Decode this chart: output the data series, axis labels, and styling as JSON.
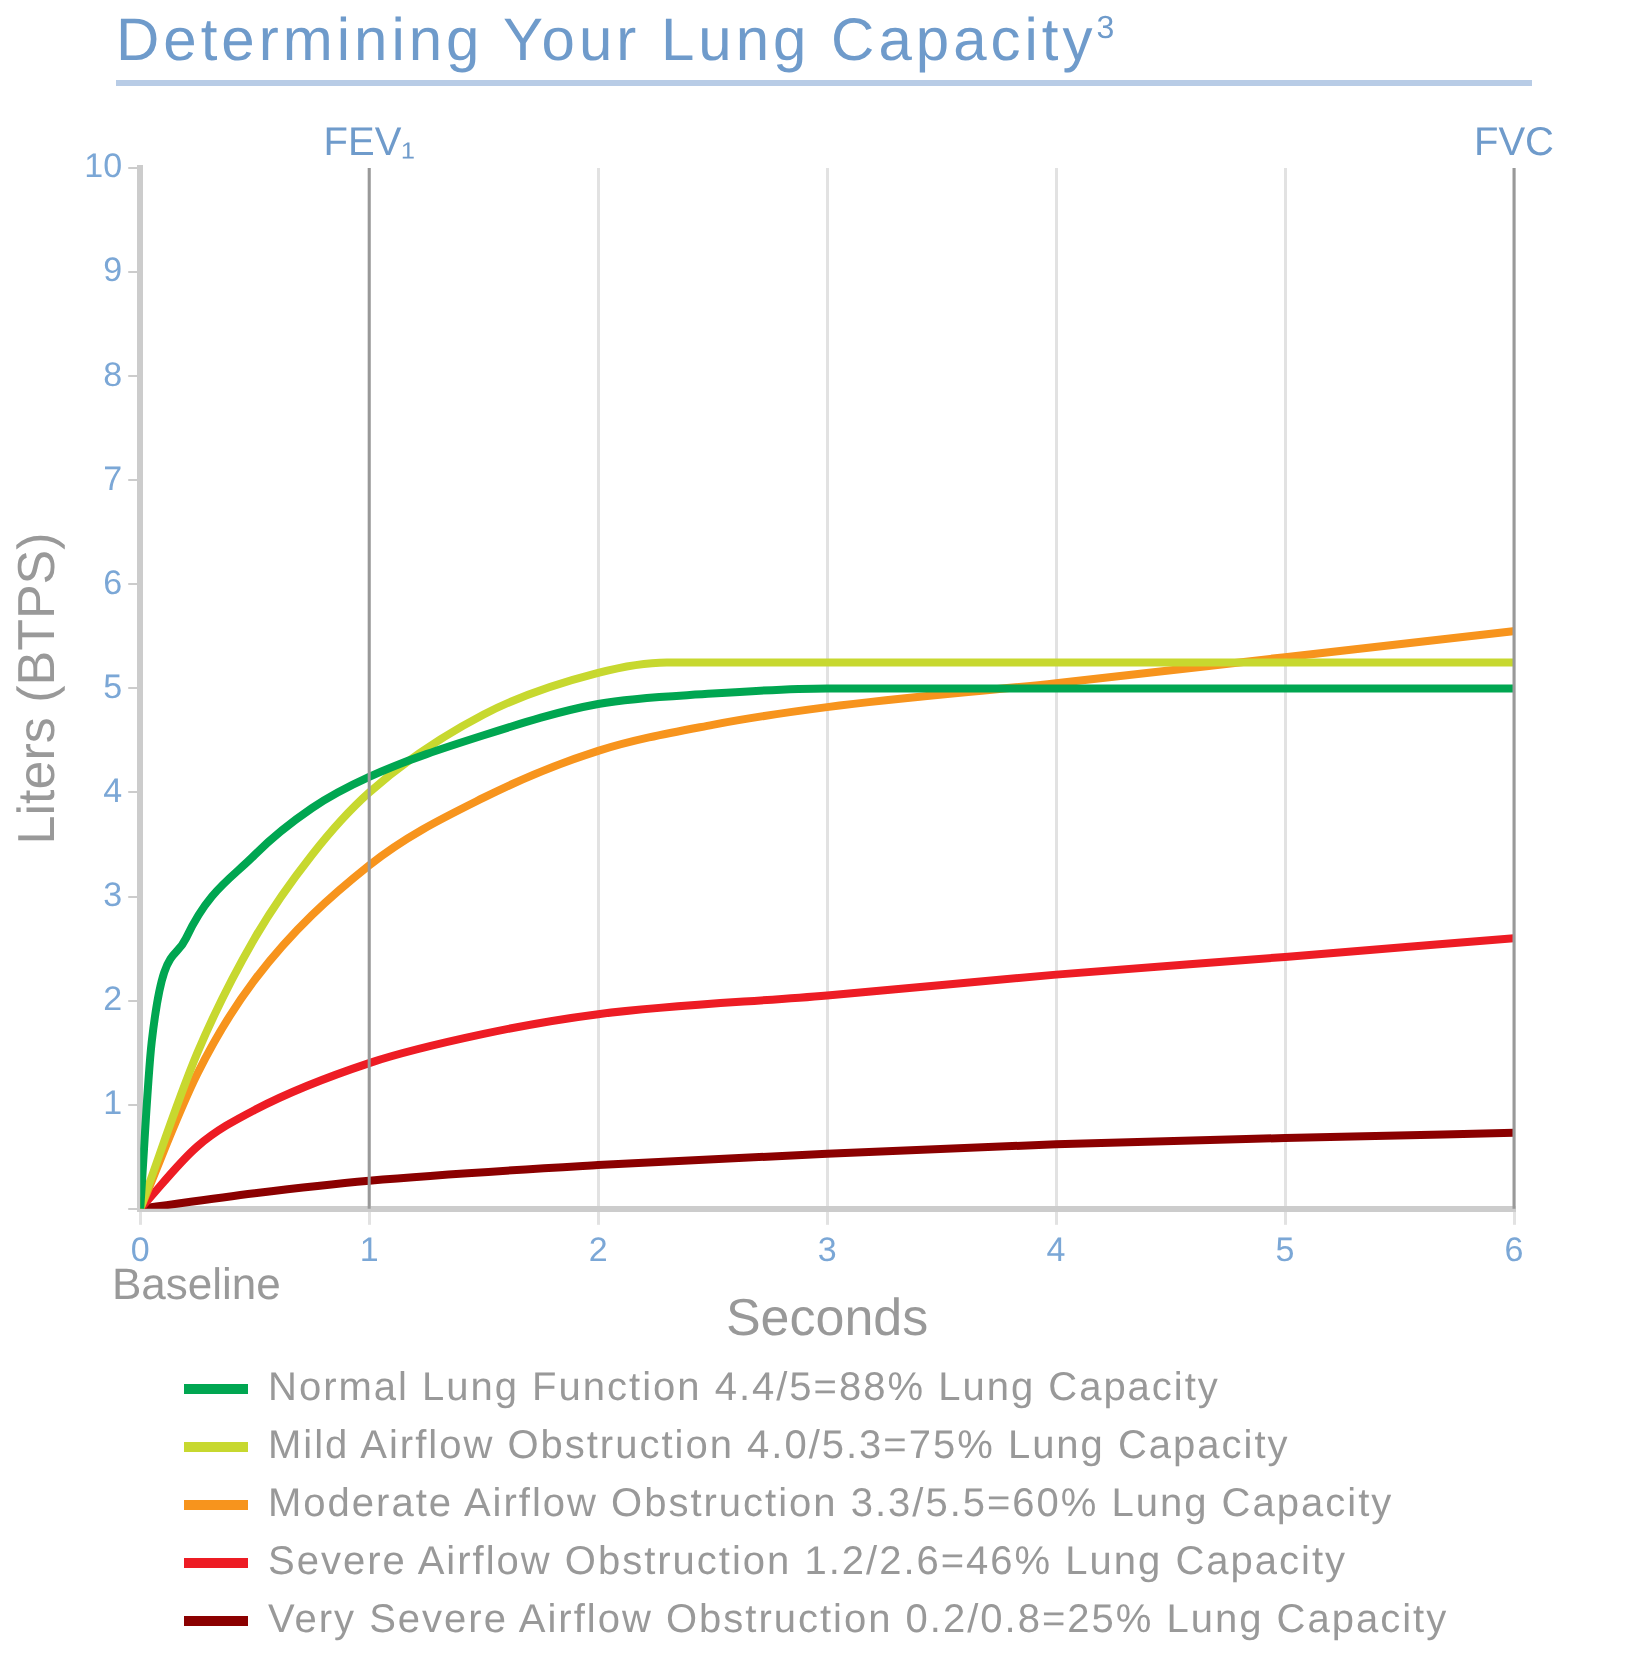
{
  "chart_data": {
    "type": "line",
    "title": "Determining Your Lung Capacity$^{3}$",
    "xlabel": "Seconds",
    "ylabel": "Liters (BTPS)",
    "xlim": [
      0,
      6
    ],
    "xticks": [
      0,
      1,
      2,
      3,
      4,
      5,
      6
    ],
    "ylim": [
      0,
      10
    ],
    "yticks": [
      {
        "value": 0,
        "label": null
      },
      1,
      2,
      3,
      4,
      5,
      6,
      7,
      8,
      9,
      10
    ],
    "grid": "x",
    "legend": "bottom",
    "marker": "none",
    "ref_lines": [
      {
        "axis": "x",
        "value": 1,
        "label": "FEV₁",
        "color": "#999999"
      },
      {
        "axis": "x",
        "value": 6,
        "label": "FVC",
        "color": "#999999"
      }
    ],
    "annotations": [
      "Baseline"
    ],
    "series": [
      {
        "name": "Normal Lung Function 4.4/5=88% Lung Capacity",
        "color": "#00a651",
        "x": [
          0,
          0.05,
          0.2,
          0.5,
          0.75,
          1,
          1.5,
          2,
          2.5,
          3,
          4,
          5,
          6
        ],
        "values": [
          0,
          1.6,
          2.6,
          3.4,
          3.85,
          4.15,
          4.55,
          4.85,
          4.95,
          5,
          5,
          5,
          5
        ]
      },
      {
        "name": "Mild Airflow Obstruction 4.0/5.3=75% Lung Capacity",
        "color": "#c7d82f",
        "x": [
          0,
          0.25,
          0.5,
          0.75,
          1,
          1.5,
          2,
          2.3,
          3,
          4,
          5,
          6
        ],
        "values": [
          0,
          1.5,
          2.6,
          3.4,
          4,
          4.75,
          5.15,
          5.25,
          5.25,
          5.25,
          5.25,
          5.25
        ]
      },
      {
        "name": "Moderate Airflow Obstruction 3.3/5.5=60% Lung Capacity",
        "color": "#f7941d",
        "x": [
          0,
          0.25,
          0.5,
          1,
          1.5,
          2,
          2.5,
          3,
          4,
          5,
          6
        ],
        "values": [
          0,
          1.3,
          2.2,
          3.3,
          3.95,
          4.4,
          4.65,
          4.82,
          5.05,
          5.3,
          5.55
        ]
      },
      {
        "name": "Severe Airflow Obstruction 1.2/2.6=46% Lung Capacity",
        "color": "#ed1c24",
        "x": [
          0,
          0.25,
          0.5,
          1,
          1.5,
          2,
          3,
          4,
          5,
          6
        ],
        "values": [
          0,
          0.6,
          0.95,
          1.4,
          1.68,
          1.87,
          2.05,
          2.25,
          2.42,
          2.6
        ]
      },
      {
        "name": "Very Severe Airflow Obstruction 0.2/0.8=25% Lung Capacity",
        "color": "#8b0000",
        "x": [
          0,
          0.5,
          1,
          2,
          3,
          4,
          5,
          6
        ],
        "values": [
          0,
          0.15,
          0.27,
          0.42,
          0.53,
          0.62,
          0.68,
          0.73
        ]
      }
    ]
  }
}
